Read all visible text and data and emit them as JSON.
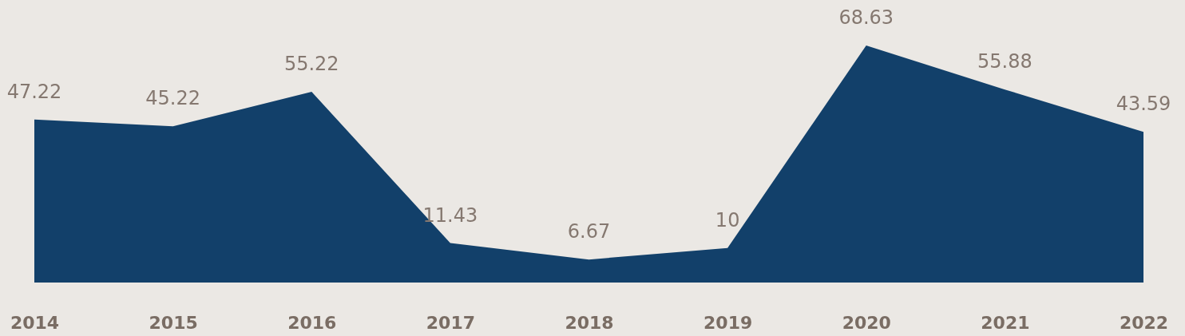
{
  "chart_data": {
    "type": "area",
    "categories": [
      "2014",
      "2015",
      "2016",
      "2017",
      "2018",
      "2019",
      "2020",
      "2021",
      "2022"
    ],
    "values": [
      47.22,
      45.22,
      55.22,
      11.43,
      6.67,
      10,
      68.63,
      55.88,
      43.59
    ],
    "color": "#12406a",
    "data_labels": true
  }
}
